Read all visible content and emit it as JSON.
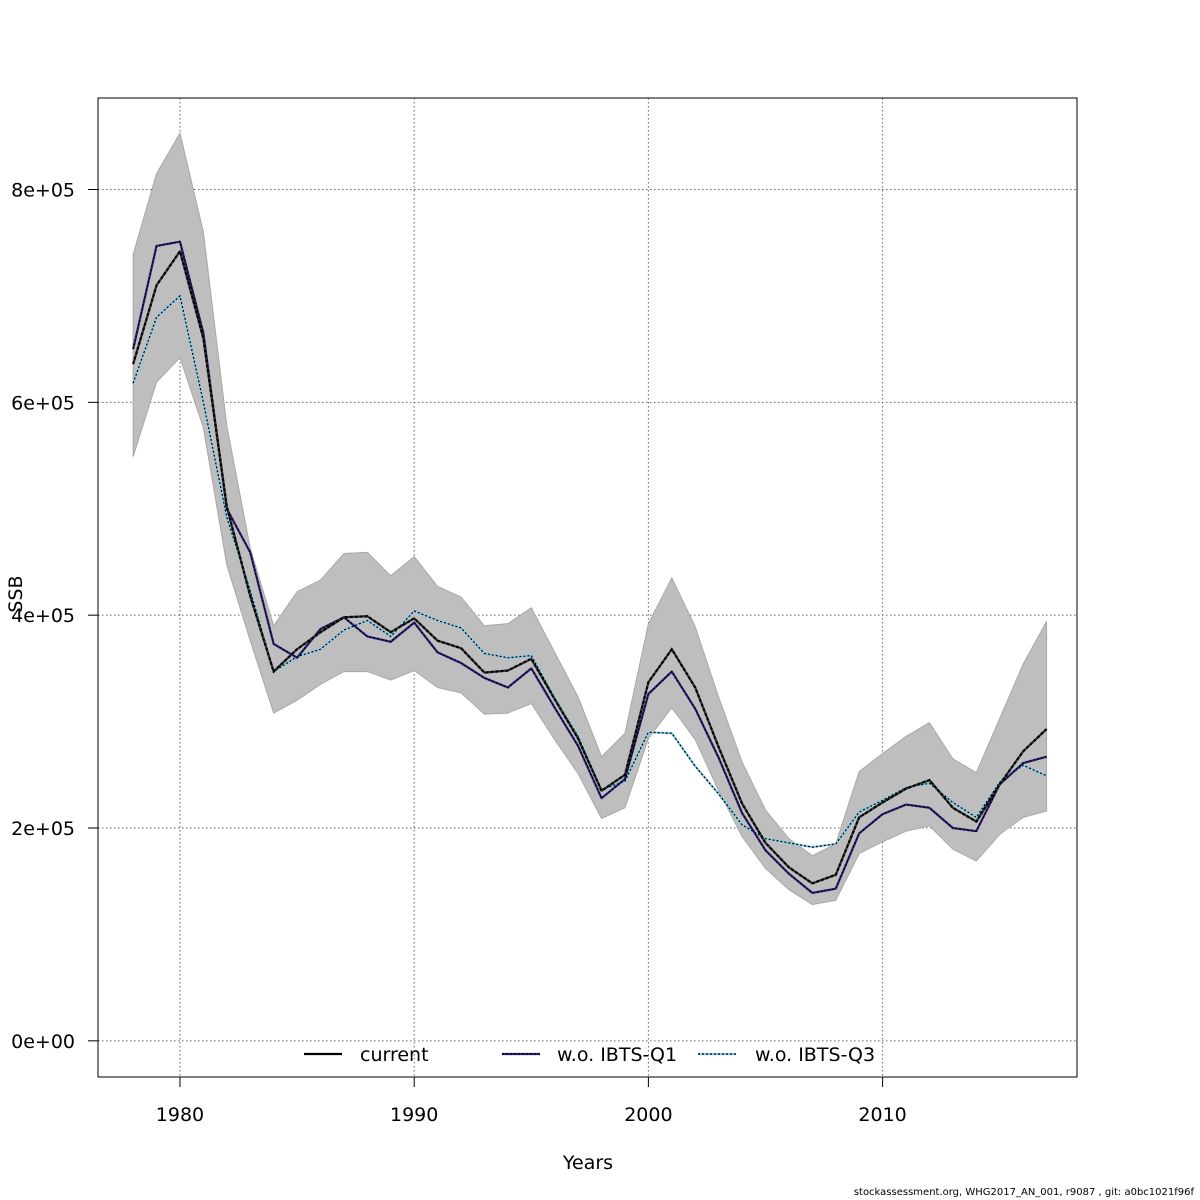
{
  "chart_data": {
    "type": "line",
    "title": "",
    "xlabel": "Years",
    "ylabel": "SSB",
    "xlim": [
      1976.5,
      2018.3
    ],
    "ylim": [
      -34000,
      886000
    ],
    "grid": true,
    "legend_position": "bottom",
    "x_ticks": [
      1980,
      1990,
      2000,
      2010
    ],
    "x_tick_labels": [
      "1980",
      "1990",
      "2000",
      "2010"
    ],
    "y_ticks": [
      0,
      200000,
      400000,
      600000,
      800000
    ],
    "y_tick_labels": [
      "0e+00",
      "2e+05",
      "4e+05",
      "6e+05",
      "8e+05"
    ],
    "x": [
      1978,
      1979,
      1980,
      1981,
      1982,
      1983,
      1984,
      1985,
      1986,
      1987,
      1988,
      1989,
      1990,
      1991,
      1992,
      1993,
      1994,
      1995,
      1996,
      1997,
      1998,
      1999,
      2000,
      2001,
      2002,
      2003,
      2004,
      2005,
      2006,
      2007,
      2008,
      2009,
      2010,
      2011,
      2012,
      2013,
      2014,
      2015,
      2016,
      2017
    ],
    "band": {
      "upper": [
        739000,
        815000,
        853000,
        760000,
        578000,
        463000,
        390000,
        422000,
        433000,
        458000,
        459000,
        437000,
        455000,
        427000,
        417000,
        390000,
        392000,
        407000,
        365000,
        323000,
        267000,
        289000,
        392000,
        435000,
        389000,
        323000,
        262000,
        217000,
        190000,
        174000,
        185000,
        253000,
        270000,
        286000,
        299000,
        265000,
        252000,
        303000,
        354000,
        394000
      ],
      "lower": [
        549000,
        619000,
        642000,
        576000,
        447000,
        376000,
        308000,
        320000,
        335000,
        347000,
        347000,
        339000,
        348000,
        332000,
        327000,
        307000,
        308000,
        317000,
        283000,
        251000,
        209000,
        219000,
        284000,
        313000,
        283000,
        235000,
        192000,
        162000,
        142000,
        128000,
        132000,
        176000,
        187000,
        197000,
        202000,
        180000,
        169000,
        194000,
        210000,
        216000
      ],
      "color": "#bebebe"
    },
    "series": [
      {
        "name": "current",
        "color": "#000000",
        "style": "solid",
        "values": [
          636000,
          710000,
          742000,
          660000,
          502000,
          418000,
          347000,
          368000,
          384000,
          398000,
          399000,
          384000,
          397000,
          376000,
          369000,
          346000,
          348000,
          359000,
          321000,
          284000,
          235000,
          250000,
          337000,
          368000,
          332000,
          276000,
          223000,
          186000,
          163000,
          148000,
          156000,
          210000,
          224000,
          237000,
          245000,
          219000,
          206000,
          241000,
          272000,
          293000
        ]
      },
      {
        "name": "w.o. IBTS-Q1",
        "color": "#2d1e7a",
        "style": "dotted",
        "values": [
          650000,
          747000,
          751000,
          665000,
          500000,
          459000,
          373000,
          360000,
          387000,
          398000,
          380000,
          375000,
          393000,
          365000,
          355000,
          341000,
          332000,
          350000,
          313000,
          277000,
          228000,
          246000,
          326000,
          347000,
          312000,
          266000,
          214000,
          179000,
          157000,
          139000,
          143000,
          195000,
          213000,
          222000,
          219000,
          200000,
          197000,
          241000,
          261000,
          267000
        ]
      },
      {
        "name": "w.o. IBTS-Q3",
        "color": "#87ceeb",
        "style": "dotted",
        "values": [
          618000,
          680000,
          700000,
          600000,
          492000,
          423000,
          347000,
          361000,
          368000,
          386000,
          395000,
          380000,
          404000,
          395000,
          388000,
          364000,
          360000,
          362000,
          322000,
          286000,
          236000,
          244000,
          290000,
          289000,
          258000,
          232000,
          203000,
          190000,
          186000,
          182000,
          185000,
          215000,
          226000,
          238000,
          242000,
          224000,
          210000,
          243000,
          259000,
          249000
        ]
      }
    ]
  },
  "footer": {
    "note": "stockassessment.org, WHG2017_AN_001, r9087 , git: a0bc1021f96f"
  }
}
